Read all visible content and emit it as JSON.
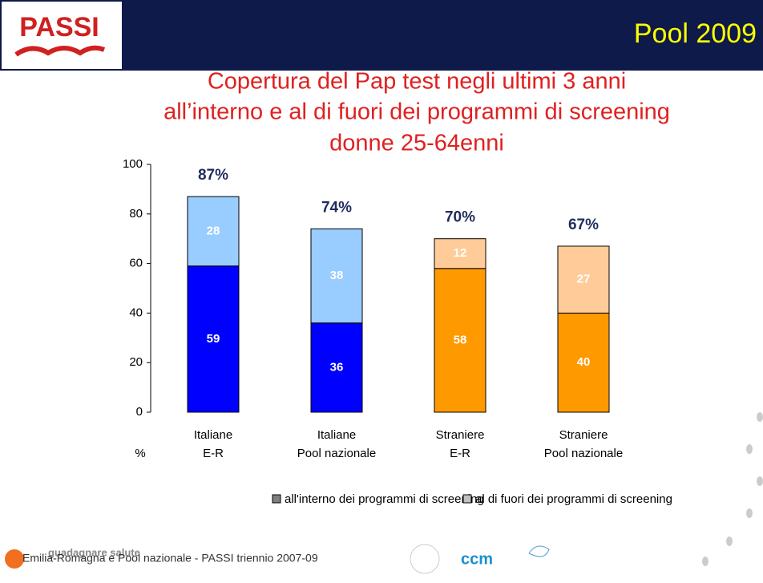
{
  "header": {
    "logo": "PASSI",
    "title": "Pool 2009"
  },
  "chart_data": {
    "type": "stacked-bar",
    "title": [
      "Copertura del Pap test negli ultimi 3 anni",
      "all’interno e al di fuori dei programmi di screening",
      "donne 25-64enni"
    ],
    "ylabel": "%",
    "categories": [
      [
        "Italiane",
        "E-R"
      ],
      [
        "Italiane",
        "Pool nazionale"
      ],
      [
        "Straniere",
        "E-R"
      ],
      [
        "Straniere",
        "Pool nazionale"
      ]
    ],
    "series": [
      {
        "name": "all'interno dei programmi di screening",
        "color": "#808080",
        "colors": [
          "#0000ff",
          "#0000ff",
          "#ff9900",
          "#ff9900"
        ],
        "values": [
          59,
          36,
          58,
          40
        ]
      },
      {
        "name": "al di fuori dei programmi di screening",
        "color": "#c0c0c0",
        "colors": [
          "#99ccff",
          "#99ccff",
          "#ffcc99",
          "#ffcc99"
        ],
        "values": [
          28,
          38,
          12,
          27
        ]
      }
    ],
    "totals": {
      "values": [
        87,
        74,
        70,
        67
      ],
      "value_labels": [
        "87%",
        "74%",
        "70%",
        "67%"
      ]
    },
    "ylim": [
      0,
      100
    ],
    "yticks": [
      0,
      20,
      40,
      60,
      80,
      100
    ]
  },
  "footer": {
    "text": "Emilia-Romagna e Pool nazionale - PASSI triennio 2007-09",
    "brand": "guadagnare salute",
    "ccm": "ccm"
  }
}
